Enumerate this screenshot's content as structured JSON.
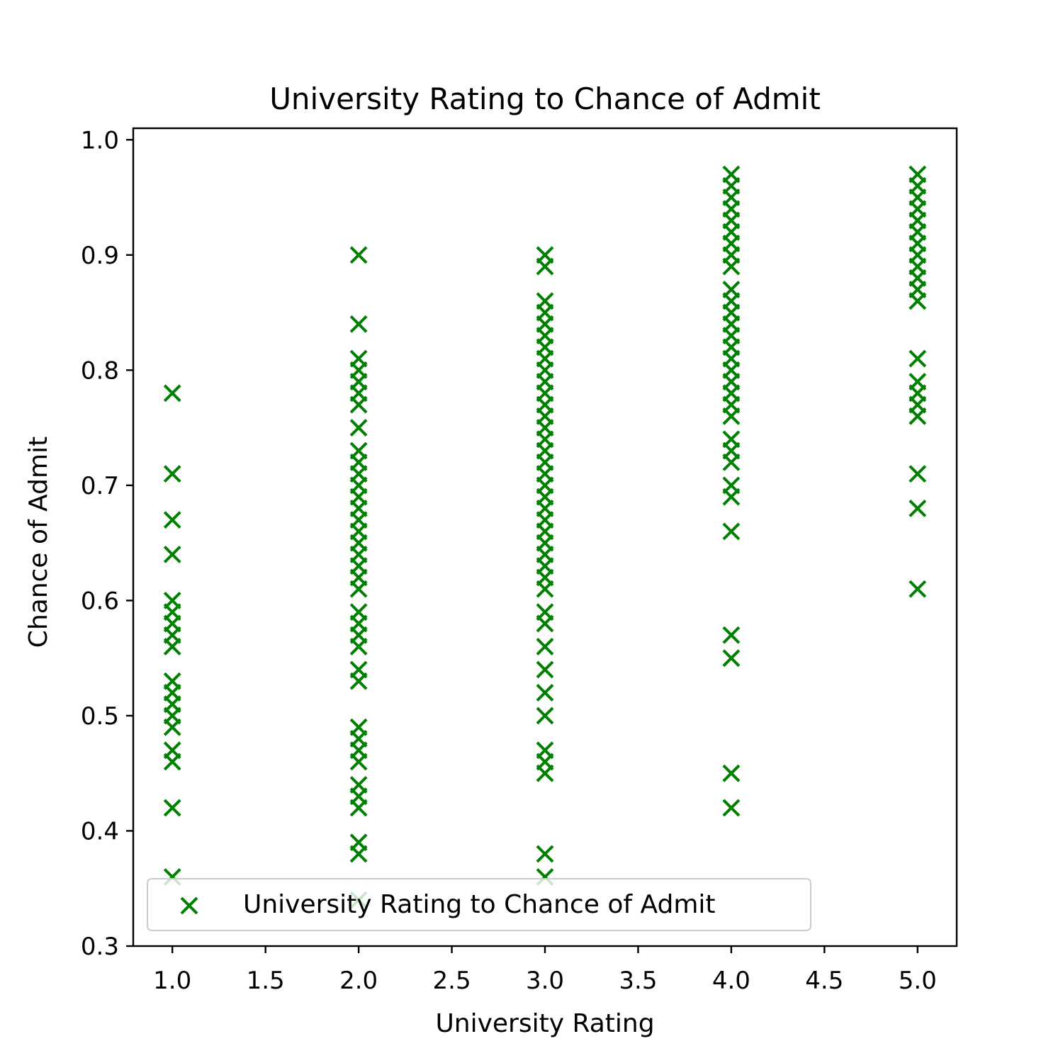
{
  "chart_data": {
    "type": "scatter",
    "title": "University Rating to Chance of Admit",
    "xlabel": "University Rating",
    "ylabel": "Chance of Admit",
    "xlim": [
      0.79,
      5.21
    ],
    "ylim": [
      0.3,
      1.01
    ],
    "xticks": [
      "1.0",
      "1.5",
      "2.0",
      "2.5",
      "3.0",
      "3.5",
      "4.0",
      "4.5",
      "5.0"
    ],
    "yticks": [
      "0.3",
      "0.4",
      "0.5",
      "0.6",
      "0.7",
      "0.8",
      "0.9",
      "1.0"
    ],
    "grid": false,
    "legend": {
      "position": "lower-left",
      "entries": [
        "University Rating to Chance of Admit"
      ]
    },
    "marker": "x",
    "colors": {
      "series": "#008000",
      "axes": "#000000",
      "legend_border": "#cccccc"
    },
    "series": [
      {
        "name": "University Rating to Chance of Admit",
        "points": [
          {
            "x": 1,
            "y": 0.78
          },
          {
            "x": 1,
            "y": 0.71
          },
          {
            "x": 1,
            "y": 0.67
          },
          {
            "x": 1,
            "y": 0.64
          },
          {
            "x": 1,
            "y": 0.6
          },
          {
            "x": 1,
            "y": 0.59
          },
          {
            "x": 1,
            "y": 0.58
          },
          {
            "x": 1,
            "y": 0.57
          },
          {
            "x": 1,
            "y": 0.56
          },
          {
            "x": 1,
            "y": 0.53
          },
          {
            "x": 1,
            "y": 0.52
          },
          {
            "x": 1,
            "y": 0.51
          },
          {
            "x": 1,
            "y": 0.5
          },
          {
            "x": 1,
            "y": 0.49
          },
          {
            "x": 1,
            "y": 0.47
          },
          {
            "x": 1,
            "y": 0.46
          },
          {
            "x": 1,
            "y": 0.42
          },
          {
            "x": 1,
            "y": 0.36
          },
          {
            "x": 2,
            "y": 0.9
          },
          {
            "x": 2,
            "y": 0.84
          },
          {
            "x": 2,
            "y": 0.81
          },
          {
            "x": 2,
            "y": 0.8
          },
          {
            "x": 2,
            "y": 0.79
          },
          {
            "x": 2,
            "y": 0.78
          },
          {
            "x": 2,
            "y": 0.77
          },
          {
            "x": 2,
            "y": 0.75
          },
          {
            "x": 2,
            "y": 0.73
          },
          {
            "x": 2,
            "y": 0.72
          },
          {
            "x": 2,
            "y": 0.71
          },
          {
            "x": 2,
            "y": 0.7
          },
          {
            "x": 2,
            "y": 0.69
          },
          {
            "x": 2,
            "y": 0.68
          },
          {
            "x": 2,
            "y": 0.67
          },
          {
            "x": 2,
            "y": 0.66
          },
          {
            "x": 2,
            "y": 0.65
          },
          {
            "x": 2,
            "y": 0.64
          },
          {
            "x": 2,
            "y": 0.63
          },
          {
            "x": 2,
            "y": 0.62
          },
          {
            "x": 2,
            "y": 0.61
          },
          {
            "x": 2,
            "y": 0.59
          },
          {
            "x": 2,
            "y": 0.58
          },
          {
            "x": 2,
            "y": 0.57
          },
          {
            "x": 2,
            "y": 0.56
          },
          {
            "x": 2,
            "y": 0.54
          },
          {
            "x": 2,
            "y": 0.53
          },
          {
            "x": 2,
            "y": 0.49
          },
          {
            "x": 2,
            "y": 0.48
          },
          {
            "x": 2,
            "y": 0.47
          },
          {
            "x": 2,
            "y": 0.46
          },
          {
            "x": 2,
            "y": 0.44
          },
          {
            "x": 2,
            "y": 0.43
          },
          {
            "x": 2,
            "y": 0.42
          },
          {
            "x": 2,
            "y": 0.39
          },
          {
            "x": 2,
            "y": 0.38
          },
          {
            "x": 2,
            "y": 0.34
          },
          {
            "x": 3,
            "y": 0.9
          },
          {
            "x": 3,
            "y": 0.89
          },
          {
            "x": 3,
            "y": 0.86
          },
          {
            "x": 3,
            "y": 0.85
          },
          {
            "x": 3,
            "y": 0.84
          },
          {
            "x": 3,
            "y": 0.83
          },
          {
            "x": 3,
            "y": 0.82
          },
          {
            "x": 3,
            "y": 0.81
          },
          {
            "x": 3,
            "y": 0.8
          },
          {
            "x": 3,
            "y": 0.79
          },
          {
            "x": 3,
            "y": 0.78
          },
          {
            "x": 3,
            "y": 0.77
          },
          {
            "x": 3,
            "y": 0.76
          },
          {
            "x": 3,
            "y": 0.75
          },
          {
            "x": 3,
            "y": 0.74
          },
          {
            "x": 3,
            "y": 0.73
          },
          {
            "x": 3,
            "y": 0.72
          },
          {
            "x": 3,
            "y": 0.71
          },
          {
            "x": 3,
            "y": 0.7
          },
          {
            "x": 3,
            "y": 0.69
          },
          {
            "x": 3,
            "y": 0.68
          },
          {
            "x": 3,
            "y": 0.67
          },
          {
            "x": 3,
            "y": 0.66
          },
          {
            "x": 3,
            "y": 0.65
          },
          {
            "x": 3,
            "y": 0.64
          },
          {
            "x": 3,
            "y": 0.63
          },
          {
            "x": 3,
            "y": 0.62
          },
          {
            "x": 3,
            "y": 0.61
          },
          {
            "x": 3,
            "y": 0.59
          },
          {
            "x": 3,
            "y": 0.58
          },
          {
            "x": 3,
            "y": 0.56
          },
          {
            "x": 3,
            "y": 0.54
          },
          {
            "x": 3,
            "y": 0.52
          },
          {
            "x": 3,
            "y": 0.5
          },
          {
            "x": 3,
            "y": 0.47
          },
          {
            "x": 3,
            "y": 0.46
          },
          {
            "x": 3,
            "y": 0.45
          },
          {
            "x": 3,
            "y": 0.38
          },
          {
            "x": 3,
            "y": 0.36
          },
          {
            "x": 4,
            "y": 0.97
          },
          {
            "x": 4,
            "y": 0.96
          },
          {
            "x": 4,
            "y": 0.95
          },
          {
            "x": 4,
            "y": 0.94
          },
          {
            "x": 4,
            "y": 0.93
          },
          {
            "x": 4,
            "y": 0.92
          },
          {
            "x": 4,
            "y": 0.91
          },
          {
            "x": 4,
            "y": 0.9
          },
          {
            "x": 4,
            "y": 0.89
          },
          {
            "x": 4,
            "y": 0.87
          },
          {
            "x": 4,
            "y": 0.86
          },
          {
            "x": 4,
            "y": 0.85
          },
          {
            "x": 4,
            "y": 0.84
          },
          {
            "x": 4,
            "y": 0.83
          },
          {
            "x": 4,
            "y": 0.82
          },
          {
            "x": 4,
            "y": 0.81
          },
          {
            "x": 4,
            "y": 0.8
          },
          {
            "x": 4,
            "y": 0.79
          },
          {
            "x": 4,
            "y": 0.78
          },
          {
            "x": 4,
            "y": 0.77
          },
          {
            "x": 4,
            "y": 0.76
          },
          {
            "x": 4,
            "y": 0.74
          },
          {
            "x": 4,
            "y": 0.73
          },
          {
            "x": 4,
            "y": 0.72
          },
          {
            "x": 4,
            "y": 0.7
          },
          {
            "x": 4,
            "y": 0.69
          },
          {
            "x": 4,
            "y": 0.66
          },
          {
            "x": 4,
            "y": 0.57
          },
          {
            "x": 4,
            "y": 0.55
          },
          {
            "x": 4,
            "y": 0.45
          },
          {
            "x": 4,
            "y": 0.42
          },
          {
            "x": 5,
            "y": 0.97
          },
          {
            "x": 5,
            "y": 0.96
          },
          {
            "x": 5,
            "y": 0.95
          },
          {
            "x": 5,
            "y": 0.94
          },
          {
            "x": 5,
            "y": 0.93
          },
          {
            "x": 5,
            "y": 0.92
          },
          {
            "x": 5,
            "y": 0.91
          },
          {
            "x": 5,
            "y": 0.9
          },
          {
            "x": 5,
            "y": 0.89
          },
          {
            "x": 5,
            "y": 0.88
          },
          {
            "x": 5,
            "y": 0.87
          },
          {
            "x": 5,
            "y": 0.86
          },
          {
            "x": 5,
            "y": 0.81
          },
          {
            "x": 5,
            "y": 0.79
          },
          {
            "x": 5,
            "y": 0.78
          },
          {
            "x": 5,
            "y": 0.77
          },
          {
            "x": 5,
            "y": 0.76
          },
          {
            "x": 5,
            "y": 0.71
          },
          {
            "x": 5,
            "y": 0.68
          },
          {
            "x": 5,
            "y": 0.61
          }
        ]
      }
    ]
  }
}
